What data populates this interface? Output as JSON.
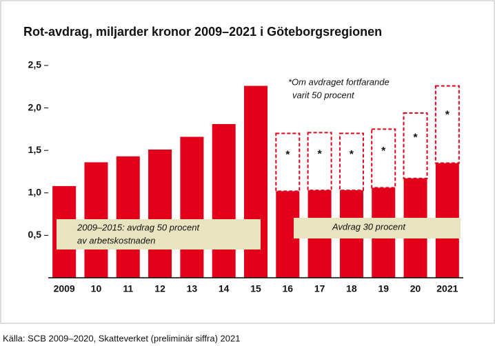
{
  "chart_data": {
    "type": "bar",
    "title": "Rot-avdrag, miljarder kronor 2009–2021 i Göteborgsregionen",
    "categories": [
      "2009",
      "10",
      "11",
      "12",
      "13",
      "14",
      "15",
      "16",
      "17",
      "18",
      "19",
      "20",
      "2021"
    ],
    "values": [
      1.08,
      1.36,
      1.43,
      1.51,
      1.66,
      1.81,
      2.26,
      1.02,
      1.03,
      1.03,
      1.06,
      1.17,
      1.35
    ],
    "values_if_50": [
      null,
      null,
      null,
      null,
      null,
      null,
      null,
      1.7,
      1.71,
      1.7,
      1.75,
      1.94,
      2.26
    ],
    "color": "#e2001a",
    "ylim": [
      0,
      2.5
    ],
    "yticks": [
      {
        "value": 0.5,
        "label": "0,5"
      },
      {
        "value": 1.0,
        "label": "1,0"
      },
      {
        "value": 1.5,
        "label": "1,5"
      },
      {
        "value": 2.0,
        "label": "2,0"
      },
      {
        "value": 2.5,
        "label": "2,5"
      }
    ],
    "grid": false,
    "marker": "*",
    "note": [
      "*Om avdraget fortfarande",
      "varit 50 procent"
    ],
    "box_left": [
      "2009–2015: avdrag 50 procent",
      "av arbetskostnaden"
    ],
    "box_right": "Avdrag 30 procent",
    "source": "Källa: SCB 2009–2020, Skatteverket (preliminär siffra) 2021"
  }
}
